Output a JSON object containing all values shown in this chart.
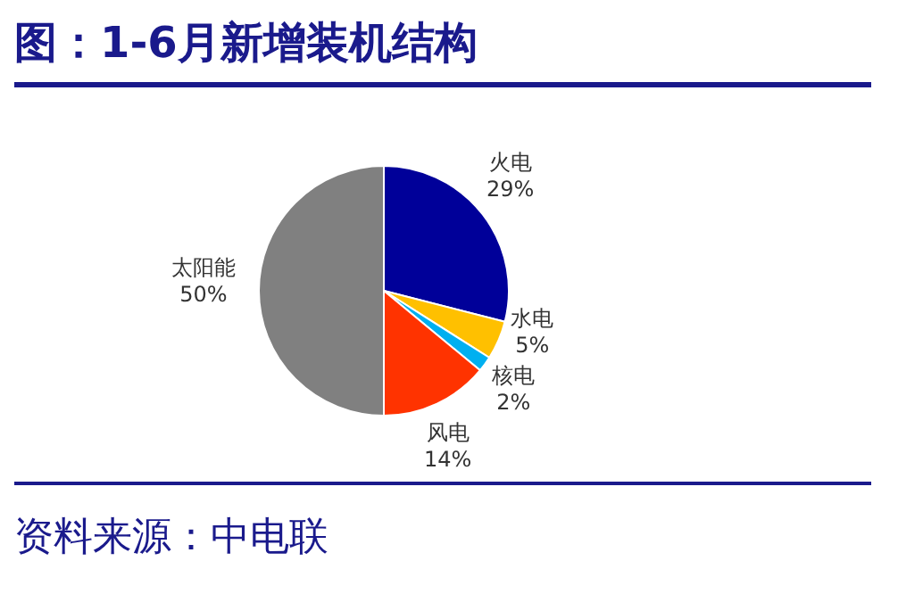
{
  "chart_data": {
    "type": "pie",
    "title": "图：1-6月新增装机结构",
    "categories": [
      "火电",
      "水电",
      "核电",
      "风电",
      "太阳能"
    ],
    "values": [
      29,
      5,
      2,
      14,
      50
    ],
    "value_labels": [
      "29%",
      "5%",
      "2%",
      "14%",
      "50%"
    ],
    "colors": [
      "#000099",
      "#ffc000",
      "#00b0f0",
      "#ff3300",
      "#808080"
    ],
    "legend": false,
    "annotations": [
      "资料来源：中电联"
    ]
  }
}
